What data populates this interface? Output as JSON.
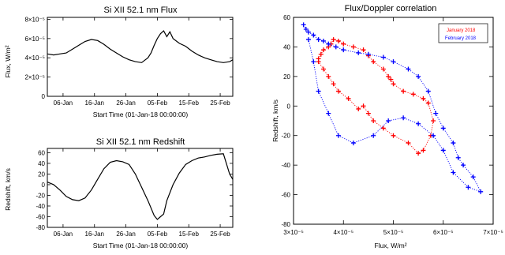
{
  "chart_data": [
    {
      "type": "line",
      "title": "Si XII 52.1 nm Flux",
      "xlabel": "Start Time (01-Jan-18 00:00:00)",
      "ylabel": "Flux, W/m²",
      "x_ticks": [
        "06-Jan",
        "16-Jan",
        "26-Jan",
        "05-Feb",
        "15-Feb",
        "25-Feb"
      ],
      "x_tick_days": [
        5,
        15,
        25,
        35,
        45,
        55
      ],
      "xlim_days": [
        0,
        59
      ],
      "y_ticks": [
        "0",
        "2×10⁻⁵",
        "4×10⁻⁵",
        "6×10⁻⁵",
        "8×10⁻⁵"
      ],
      "y_tick_values": [
        0,
        2e-05,
        4e-05,
        6e-05,
        8e-05
      ],
      "ylim": [
        0,
        8.2e-05
      ],
      "series": [
        {
          "x": [
            0,
            2,
            4,
            6,
            8,
            10,
            12,
            14,
            16,
            18,
            20,
            22,
            24,
            26,
            28,
            30,
            32,
            33,
            34,
            35,
            36,
            37,
            38,
            39,
            40,
            42,
            44,
            46,
            48,
            50,
            52,
            54,
            56,
            58,
            59
          ],
          "y": [
            4.4e-05,
            4.3e-05,
            4.4e-05,
            4.5e-05,
            4.9e-05,
            5.3e-05,
            5.7e-05,
            5.9e-05,
            5.8e-05,
            5.4e-05,
            4.9e-05,
            4.5e-05,
            4.1e-05,
            3.8e-05,
            3.6e-05,
            3.5e-05,
            4e-05,
            4.5e-05,
            5.3e-05,
            6e-05,
            6.5e-05,
            6.8e-05,
            6.2e-05,
            6.7e-05,
            6e-05,
            5.5e-05,
            5.2e-05,
            4.7e-05,
            4.3e-05,
            4e-05,
            3.8e-05,
            3.6e-05,
            3.5e-05,
            3.6e-05,
            3.8e-05
          ]
        }
      ]
    },
    {
      "type": "line",
      "title": "Si XII 52.1 nm Redshift",
      "xlabel": "Start Time (01-Jan-18 00:00:00)",
      "ylabel": "Redshift, km/s",
      "x_ticks": [
        "06-Jan",
        "16-Jan",
        "26-Jan",
        "05-Feb",
        "15-Feb",
        "25-Feb"
      ],
      "x_tick_days": [
        5,
        15,
        25,
        35,
        45,
        55
      ],
      "xlim_days": [
        0,
        59
      ],
      "y_ticks": [
        "-80",
        "-60",
        "-40",
        "-20",
        "0",
        "20",
        "40",
        "60"
      ],
      "y_tick_values": [
        -80,
        -60,
        -40,
        -20,
        0,
        20,
        40,
        60
      ],
      "ylim": [
        -80,
        68
      ],
      "series": [
        {
          "x": [
            0,
            2,
            4,
            6,
            8,
            10,
            12,
            14,
            16,
            18,
            20,
            22,
            24,
            26,
            28,
            30,
            32,
            34,
            35,
            36,
            37,
            38,
            40,
            42,
            44,
            46,
            48,
            50,
            52,
            54,
            56,
            58,
            59
          ],
          "y": [
            5,
            0,
            -10,
            -22,
            -28,
            -30,
            -25,
            -10,
            10,
            30,
            42,
            45,
            43,
            38,
            20,
            -5,
            -30,
            -58,
            -65,
            -60,
            -55,
            -30,
            0,
            22,
            38,
            45,
            50,
            52,
            55,
            57,
            58,
            20,
            10
          ]
        }
      ]
    },
    {
      "type": "scatter",
      "title": "Flux/Doppler correlation",
      "xlabel": "Flux, W/m²",
      "ylabel": "Redshift, km/s",
      "xlim": [
        3e-05,
        7e-05
      ],
      "ylim": [
        -80,
        60
      ],
      "x_ticks": [
        "3×10⁻⁵",
        "4×10⁻⁵",
        "5×10⁻⁵",
        "6×10⁻⁵",
        "7×10⁻⁵"
      ],
      "x_tick_values": [
        3e-05,
        4e-05,
        5e-05,
        6e-05,
        7e-05
      ],
      "y_ticks": [
        "-80",
        "-60",
        "-40",
        "-20",
        "0",
        "20",
        "40",
        "60"
      ],
      "y_tick_values": [
        -80,
        -60,
        -40,
        -20,
        0,
        20,
        40,
        60
      ],
      "legend_position": "top-right",
      "series": [
        {
          "name": "January 2018",
          "color": "#ff0000",
          "x": [
            3.5e-05,
            3.55e-05,
            3.6e-05,
            3.7e-05,
            3.75e-05,
            3.8e-05,
            3.9e-05,
            4e-05,
            4.2e-05,
            4.4e-05,
            4.5e-05,
            4.6e-05,
            4.8e-05,
            4.9e-05,
            4.95e-05,
            5e-05,
            5.2e-05,
            5.4e-05,
            5.6e-05,
            5.7e-05,
            5.8e-05,
            5.75e-05,
            5.6e-05,
            5.5e-05,
            5.3e-05,
            5e-05,
            4.8e-05,
            4.6e-05,
            4.5e-05,
            4.4e-05,
            4.3e-05,
            4.1e-05,
            3.9e-05,
            3.8e-05,
            3.7e-05,
            3.6e-05,
            3.5e-05
          ],
          "y": [
            32,
            35,
            38,
            40,
            42,
            45,
            44,
            42,
            40,
            38,
            34,
            30,
            25,
            20,
            18,
            15,
            10,
            8,
            5,
            2,
            -10,
            -20,
            -30,
            -32,
            -25,
            -20,
            -15,
            -10,
            -5,
            0,
            -2,
            5,
            10,
            15,
            20,
            25,
            30
          ]
        },
        {
          "name": "February 2018",
          "color": "#0000ff",
          "x": [
            3.2e-05,
            3.25e-05,
            3.3e-05,
            3.4e-05,
            3.5e-05,
            3.6e-05,
            3.7e-05,
            3.85e-05,
            4e-05,
            4.3e-05,
            4.5e-05,
            4.8e-05,
            5e-05,
            5.3e-05,
            5.5e-05,
            5.7e-05,
            5.85e-05,
            6e-05,
            6.2e-05,
            6.3e-05,
            6.4e-05,
            6.6e-05,
            6.75e-05,
            6.5e-05,
            6.2e-05,
            6e-05,
            5.8e-05,
            5.5e-05,
            5.2e-05,
            4.9e-05,
            4.6e-05,
            4.2e-05,
            3.9e-05,
            3.7e-05,
            3.5e-05,
            3.4e-05,
            3.3e-05
          ],
          "y": [
            55,
            52,
            50,
            48,
            45,
            44,
            42,
            40,
            38,
            36,
            35,
            33,
            30,
            25,
            20,
            10,
            -5,
            -15,
            -25,
            -35,
            -40,
            -48,
            -58,
            -55,
            -45,
            -30,
            -20,
            -12,
            -8,
            -10,
            -20,
            -25,
            -20,
            -5,
            10,
            30,
            45
          ]
        }
      ]
    }
  ]
}
